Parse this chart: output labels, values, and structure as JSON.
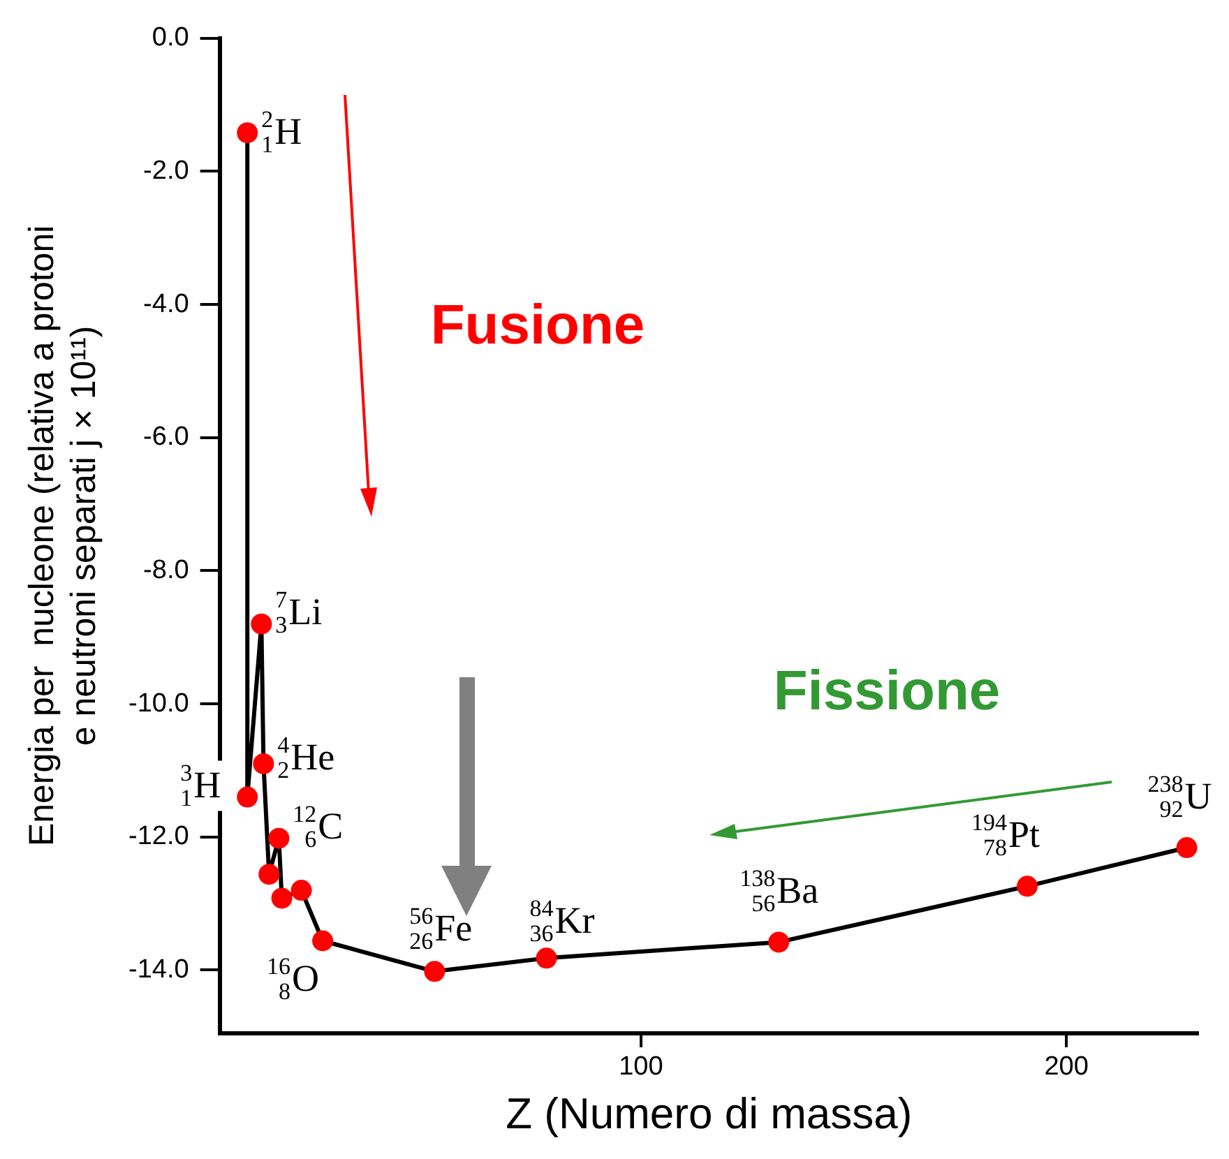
{
  "chart_data": {
    "type": "line",
    "xlabel": "Z (Numero di massa)",
    "ylabel": "Energia per  nucleone (relativa a protoni\ne neutroni separati j × 10¹¹)",
    "x": [
      7.5,
      7.5,
      10.8,
      11.3,
      12.6,
      14.9,
      15.6,
      20.2,
      25.2,
      51.5,
      77.8,
      132.4,
      190.8,
      228.3
    ],
    "series": [
      {
        "color": "#000000",
        "values": [
          -1.42,
          -11.4,
          -8.8,
          -10.9,
          -12.56,
          -12.02,
          -12.92,
          -12.8,
          -13.56,
          -14.02,
          -13.82,
          -13.58,
          -12.74,
          -12.16
        ]
      }
    ],
    "marker": "circle",
    "line_style": "solid",
    "grid": false,
    "legend": false,
    "xlim": [
      1,
      231
    ],
    "xticks": [
      100,
      200
    ],
    "ylim": [
      -14.95,
      0
    ],
    "yticks": [
      {
        "value": 0,
        "label": "0.0"
      },
      {
        "value": -2,
        "label": "-2.0"
      },
      {
        "value": -4,
        "label": "-4.0"
      },
      {
        "value": -6,
        "label": "-6.0"
      },
      {
        "value": -8,
        "label": "-8.0"
      },
      {
        "value": -10,
        "label": "-10.0"
      },
      {
        "value": -12,
        "label": "-12.0"
      },
      {
        "value": -14,
        "label": "-14.0"
      }
    ],
    "annotations": [
      {
        "text": "$^{2}$$_{1}$H",
        "x": 7.5,
        "y": -1.42
      },
      {
        "text": "$^{3}$$_{1}$H",
        "x": 7.5,
        "y": -11.4
      },
      {
        "text": "$^{7}$$_{3}$Li",
        "x": 10.8,
        "y": -8.8
      },
      {
        "text": "$^{4}$$_{2}$He",
        "x": 11.3,
        "y": -10.9
      },
      {
        "text": "$^{12}$$_{6}$C",
        "x": 14.9,
        "y": -12.02
      },
      {
        "text": "$^{16}$$_{8}$O",
        "x": 25.2,
        "y": -13.56
      },
      {
        "text": "$^{56}$$_{26}$Fe",
        "x": 51.5,
        "y": -14.02
      },
      {
        "text": "$^{84}$$_{36}$Kr",
        "x": 77.8,
        "y": -13.82
      },
      {
        "text": "$^{138}$$_{56}$Ba",
        "x": 132.4,
        "y": -13.58
      },
      {
        "text": "$^{194}$$_{78}$Pt",
        "x": 190.8,
        "y": -12.74
      },
      {
        "text": "$^{238}$$_{92}$U",
        "x": 228.3,
        "y": -12.16
      },
      "Fusione",
      "Fissione"
    ]
  }
}
